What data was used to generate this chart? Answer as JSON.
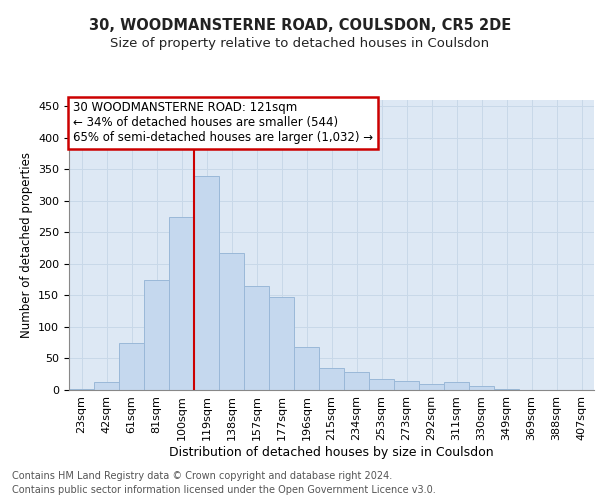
{
  "title1": "30, WOODMANSTERNE ROAD, COULSDON, CR5 2DE",
  "title2": "Size of property relative to detached houses in Coulsdon",
  "xlabel": "Distribution of detached houses by size in Coulsdon",
  "ylabel": "Number of detached properties",
  "bin_labels": [
    "23sqm",
    "42sqm",
    "61sqm",
    "81sqm",
    "100sqm",
    "119sqm",
    "138sqm",
    "157sqm",
    "177sqm",
    "196sqm",
    "215sqm",
    "234sqm",
    "253sqm",
    "273sqm",
    "292sqm",
    "311sqm",
    "330sqm",
    "349sqm",
    "369sqm",
    "388sqm",
    "407sqm"
  ],
  "bar_heights": [
    2,
    12,
    75,
    175,
    275,
    340,
    218,
    165,
    147,
    68,
    35,
    29,
    18,
    15,
    10,
    13,
    6,
    1,
    0,
    0,
    0
  ],
  "bar_color": "#c5d8ee",
  "bar_edge_color": "#9ab8d8",
  "annotation_text": "30 WOODMANSTERNE ROAD: 121sqm\n← 34% of detached houses are smaller (544)\n65% of semi-detached houses are larger (1,032) →",
  "annotation_box_color": "#ffffff",
  "annotation_border_color": "#cc0000",
  "vline_color": "#cc0000",
  "vline_x": 5.0,
  "ylim": [
    0,
    460
  ],
  "yticks": [
    0,
    50,
    100,
    150,
    200,
    250,
    300,
    350,
    400,
    450
  ],
  "grid_color": "#c8d8e8",
  "background_color": "#dde8f4",
  "footer_line1": "Contains HM Land Registry data © Crown copyright and database right 2024.",
  "footer_line2": "Contains public sector information licensed under the Open Government Licence v3.0.",
  "title_fontsize": 10.5,
  "subtitle_fontsize": 9.5,
  "xlabel_fontsize": 9,
  "ylabel_fontsize": 8.5,
  "tick_fontsize": 8,
  "footer_fontsize": 7,
  "annot_fontsize": 8.5
}
